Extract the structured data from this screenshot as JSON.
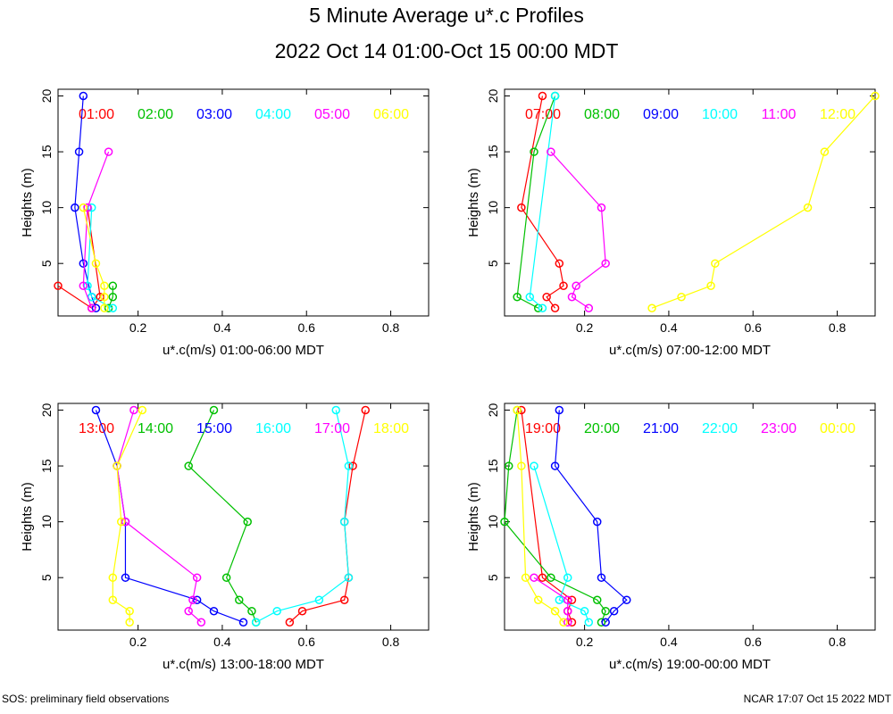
{
  "title": "5 Minute Average u*.c Profiles",
  "subtitle": "2022 Oct 14 01:00-Oct 15 00:00 MDT",
  "footer_left": "SOS: preliminary field observations",
  "footer_right": "NCAR 17:07 Oct 15 2022 MDT",
  "series_colors": [
    "#ff0000",
    "#00c000",
    "#0000ff",
    "#00ffff",
    "#ff00ff",
    "#ffff00"
  ],
  "chart_data": [
    {
      "type": "scatter",
      "xlabel": "u*.c(m/s) 01:00-06:00 MDT",
      "ylabel": "Heights (m)",
      "xlim": [
        0.01,
        0.89
      ],
      "ylim": [
        0.3,
        20.6
      ],
      "xticks": [
        0.2,
        0.4,
        0.6,
        0.8
      ],
      "xtick_labels": [
        "0.2",
        "0.4",
        "0.6",
        "0.8"
      ],
      "yticks": [
        5,
        10,
        15,
        20
      ],
      "ytick_labels": [
        "5",
        "10",
        "15",
        "20"
      ],
      "series": [
        {
          "name": "01:00",
          "x": [
            0.08,
            0.11,
            0.09,
            0.01
          ],
          "y": [
            10,
            2,
            1,
            3
          ]
        },
        {
          "name": "02:00",
          "x": [
            0.14,
            0.14,
            0.13
          ],
          "y": [
            3,
            2,
            1
          ]
        },
        {
          "name": "03:00",
          "x": [
            0.07,
            0.06,
            0.05,
            0.07,
            0.09,
            0.1
          ],
          "y": [
            20,
            15,
            10,
            5,
            2,
            1
          ]
        },
        {
          "name": "04:00",
          "x": [
            0.09,
            0.08,
            0.09,
            0.14
          ],
          "y": [
            10,
            3,
            2,
            1
          ]
        },
        {
          "name": "05:00",
          "x": [
            0.13,
            0.08,
            0.07,
            0.09
          ],
          "y": [
            15,
            10,
            3,
            1
          ]
        },
        {
          "name": "06:00",
          "x": [
            0.07,
            0.1,
            0.12,
            0.12,
            0.12
          ],
          "y": [
            10,
            5,
            3,
            2,
            1
          ]
        }
      ]
    },
    {
      "type": "scatter",
      "xlabel": "u*.c(m/s) 07:00-12:00 MDT",
      "ylabel": "Heights (m)",
      "xlim": [
        0.01,
        0.89
      ],
      "ylim": [
        0.3,
        20.6
      ],
      "xticks": [
        0.2,
        0.4,
        0.6,
        0.8
      ],
      "xtick_labels": [
        "0.2",
        "0.4",
        "0.6",
        "0.8"
      ],
      "yticks": [
        5,
        10,
        15,
        20
      ],
      "ytick_labels": [
        "5",
        "10",
        "15",
        "20"
      ],
      "series": [
        {
          "name": "07:00",
          "x": [
            0.1,
            0.05,
            0.14,
            0.15,
            0.11,
            0.13
          ],
          "y": [
            20,
            10,
            5,
            3,
            2,
            1
          ]
        },
        {
          "name": "08:00",
          "x": [
            0.13,
            0.08,
            0.04,
            0.09
          ],
          "y": [
            20,
            15,
            2,
            1
          ]
        },
        {
          "name": "09:00",
          "x": [],
          "y": []
        },
        {
          "name": "10:00",
          "x": [
            0.13,
            0.07,
            0.1
          ],
          "y": [
            20,
            2,
            1
          ]
        },
        {
          "name": "11:00",
          "x": [
            0.12,
            0.24,
            0.25,
            0.18,
            0.17,
            0.21
          ],
          "y": [
            15,
            10,
            5,
            3,
            2,
            1
          ]
        },
        {
          "name": "12:00",
          "x": [
            0.89,
            0.77,
            0.73,
            0.51,
            0.5,
            0.43,
            0.36
          ],
          "y": [
            20,
            15,
            10,
            5,
            3,
            2,
            1
          ]
        }
      ]
    },
    {
      "type": "scatter",
      "xlabel": "u*.c(m/s) 13:00-18:00 MDT",
      "ylabel": "Heights (m)",
      "xlim": [
        0.01,
        0.89
      ],
      "ylim": [
        0.3,
        20.6
      ],
      "xticks": [
        0.2,
        0.4,
        0.6,
        0.8
      ],
      "xtick_labels": [
        "0.2",
        "0.4",
        "0.6",
        "0.8"
      ],
      "yticks": [
        5,
        10,
        15,
        20
      ],
      "ytick_labels": [
        "5",
        "10",
        "15",
        "20"
      ],
      "series": [
        {
          "name": "13:00",
          "x": [
            0.74,
            0.71,
            0.69,
            0.7,
            0.69,
            0.59,
            0.56
          ],
          "y": [
            20,
            15,
            10,
            5,
            3,
            2,
            1
          ]
        },
        {
          "name": "14:00",
          "x": [
            0.38,
            0.32,
            0.46,
            0.41,
            0.44,
            0.47,
            0.48
          ],
          "y": [
            20,
            15,
            10,
            5,
            3,
            2,
            1
          ]
        },
        {
          "name": "15:00",
          "x": [
            0.1,
            0.15,
            0.17,
            0.17,
            0.34,
            0.38,
            0.45
          ],
          "y": [
            20,
            15,
            10,
            5,
            3,
            2,
            1
          ]
        },
        {
          "name": "16:00",
          "x": [
            0.67,
            0.7,
            0.69,
            0.7,
            0.63,
            0.53,
            0.48
          ],
          "y": [
            20,
            15,
            10,
            5,
            3,
            2,
            1
          ]
        },
        {
          "name": "17:00",
          "x": [
            0.19,
            0.15,
            0.17,
            0.34,
            0.33,
            0.32,
            0.35
          ],
          "y": [
            20,
            15,
            10,
            5,
            3,
            2,
            1
          ]
        },
        {
          "name": "18:00",
          "x": [
            0.21,
            0.15,
            0.16,
            0.14,
            0.14,
            0.18,
            0.18
          ],
          "y": [
            20,
            15,
            10,
            5,
            3,
            2,
            1
          ]
        }
      ]
    },
    {
      "type": "scatter",
      "xlabel": "u*.c(m/s) 19:00-00:00 MDT",
      "ylabel": "Heights (m)",
      "xlim": [
        0.01,
        0.89
      ],
      "ylim": [
        0.3,
        20.6
      ],
      "xticks": [
        0.2,
        0.4,
        0.6,
        0.8
      ],
      "xtick_labels": [
        "0.2",
        "0.4",
        "0.6",
        "0.8"
      ],
      "yticks": [
        5,
        10,
        15,
        20
      ],
      "ytick_labels": [
        "5",
        "10",
        "15",
        "20"
      ],
      "series": [
        {
          "name": "19:00",
          "x": [
            0.05,
            0.1,
            0.17,
            0.16,
            0.17
          ],
          "y": [
            20,
            5,
            3,
            2,
            1
          ]
        },
        {
          "name": "20:00",
          "x": [
            0.04,
            0.02,
            0.01,
            0.12,
            0.23,
            0.25,
            0.24
          ],
          "y": [
            20,
            15,
            10,
            5,
            3,
            2,
            1
          ]
        },
        {
          "name": "21:00",
          "x": [
            0.14,
            0.13,
            0.23,
            0.24,
            0.3,
            0.27,
            0.25
          ],
          "y": [
            20,
            15,
            10,
            5,
            3,
            2,
            1
          ]
        },
        {
          "name": "22:00",
          "x": [
            0.08,
            0.16,
            0.14,
            0.2,
            0.21
          ],
          "y": [
            15,
            5,
            3,
            2,
            1
          ]
        },
        {
          "name": "23:00",
          "x": [
            0.08,
            0.16,
            0.16,
            0.16
          ],
          "y": [
            5,
            3,
            2,
            1
          ]
        },
        {
          "name": "00:00",
          "x": [
            0.04,
            0.05,
            0.06,
            0.09,
            0.13,
            0.15
          ],
          "y": [
            20,
            15,
            5,
            3,
            2,
            1
          ]
        }
      ]
    }
  ]
}
